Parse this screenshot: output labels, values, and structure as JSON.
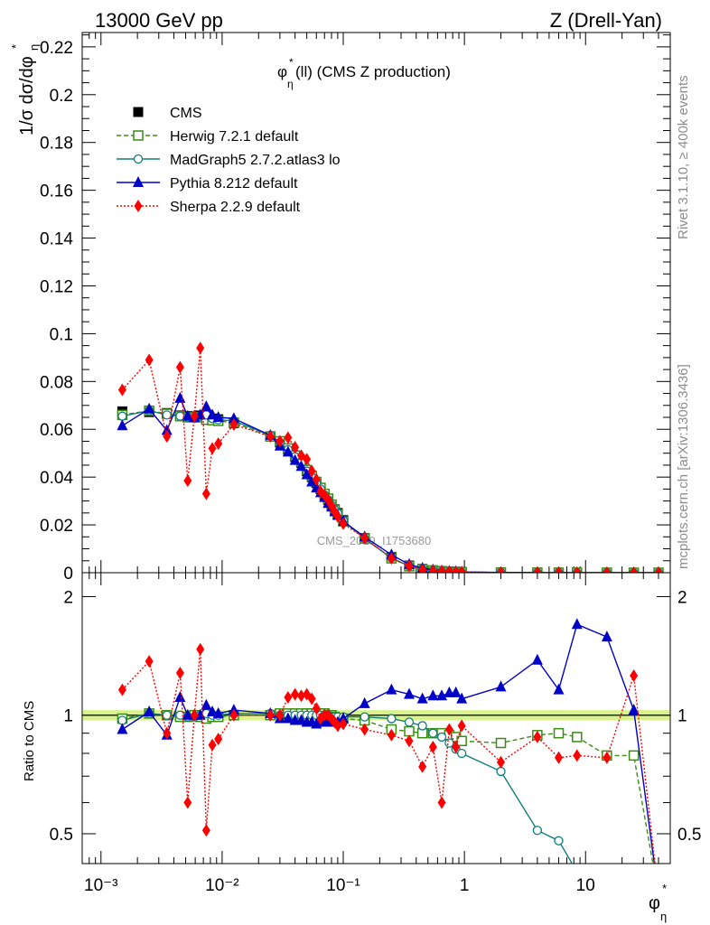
{
  "header": {
    "left": "13000 GeV pp",
    "right": "Z (Drell-Yan)"
  },
  "plot_title": "(ll) (CMS Z production)",
  "watermark": "CMS_2019_I1753680",
  "side_top": "Rivet 3.1.10, ≥ 400k events",
  "side_bottom": "mcplots.cern.ch [arXiv:1306.3436]",
  "labels": {
    "ylabel_main": "1/σ dσ/dφ",
    "ylabel_ratio": "Ratio to CMS",
    "xlabel": "φ",
    "eta": "η",
    "star": "*"
  },
  "legend": [
    {
      "key": "cms",
      "label": "CMS"
    },
    {
      "key": "herwig",
      "label": "Herwig 7.2.1 default"
    },
    {
      "key": "madgraph",
      "label": "MadGraph5 2.7.2.atlas3 lo"
    },
    {
      "key": "pythia",
      "label": "Pythia 8.212 default"
    },
    {
      "key": "sherpa",
      "label": "Sherpa 2.2.9 default"
    }
  ],
  "colors": {
    "cms": "#000000",
    "herwig": "#3c8c14",
    "madgraph": "#0f7d7d",
    "pythia": "#0000c8",
    "sherpa": "#ff0000",
    "band": "#d4f07a"
  },
  "chart_data": {
    "type": "line",
    "x_scale": "log",
    "xlim": [
      0.0007,
      50
    ],
    "x_ticks": [
      "10⁻³",
      "10⁻²",
      "10⁻¹",
      "1",
      "10"
    ],
    "main": {
      "ylim": [
        0,
        0.226
      ],
      "yticks": [
        "0",
        "0.02",
        "0.04",
        "0.06",
        "0.08",
        "0.1",
        "0.12",
        "0.14",
        "0.16",
        "0.18",
        "0.2",
        "0.22"
      ]
    },
    "ratio": {
      "scale": "log",
      "ylim": [
        0.42,
        2.3
      ],
      "yticks": [
        "0.5",
        "1",
        "2"
      ]
    },
    "x": [
      0.0015,
      0.0025,
      0.0035,
      0.0045,
      0.0052,
      0.0059,
      0.0066,
      0.0074,
      0.0083,
      0.0093,
      0.0125,
      0.025,
      0.03,
      0.035,
      0.04,
      0.045,
      0.05,
      0.055,
      0.06,
      0.065,
      0.07,
      0.075,
      0.08,
      0.085,
      0.09,
      0.1,
      0.15,
      0.25,
      0.35,
      0.45,
      0.55,
      0.65,
      0.75,
      0.85,
      0.95,
      2,
      4,
      6,
      8.5,
      15,
      25,
      40
    ],
    "series": [
      {
        "name": "CMS",
        "values": [
          0.0675,
          0.0672,
          0.0668,
          0.0658,
          0.0655,
          0.0652,
          0.0658,
          0.0655,
          0.0645,
          0.0642,
          0.0625,
          0.057,
          0.0545,
          0.0515,
          0.0485,
          0.046,
          0.0425,
          0.04,
          0.0375,
          0.035,
          0.0325,
          0.0305,
          0.0285,
          0.0265,
          0.025,
          0.022,
          0.0145,
          0.0065,
          0.003,
          0.0016,
          0.001,
          0.0007,
          0.0005,
          0.0004,
          0.0003,
          0.0001,
          5e-05,
          3e-05,
          2e-05,
          1e-05,
          5e-06,
          2e-06
        ]
      },
      {
        "name": "Herwig 7.2.1 default",
        "values": [
          0.066,
          0.0678,
          0.0665,
          0.0655,
          0.065,
          0.065,
          0.065,
          0.064,
          0.0638,
          0.0635,
          0.0628,
          0.057,
          0.055,
          0.052,
          0.049,
          0.0465,
          0.043,
          0.0405,
          0.038,
          0.0355,
          0.033,
          0.031,
          0.0285,
          0.0262,
          0.0245,
          0.0215,
          0.0143,
          0.006,
          0.0027,
          0.0014,
          0.0009,
          0.0006,
          0.0004,
          0.0003,
          0.0002,
          0.0001,
          4e-05,
          3e-05,
          2e-05,
          1e-05,
          4e-06,
          1e-06
        ],
        "ratio": [
          0.98,
          1.01,
          1.0,
          0.99,
          0.99,
          1.0,
          0.99,
          0.98,
          0.99,
          0.99,
          1.0,
          1.0,
          1.01,
          1.01,
          1.01,
          1.01,
          1.01,
          1.01,
          1.01,
          1.01,
          1.01,
          1.0,
          1.0,
          0.99,
          0.98,
          0.98,
          0.97,
          0.92,
          0.91,
          0.9,
          0.9,
          0.9,
          0.89,
          0.88,
          0.86,
          0.85,
          0.89,
          0.9,
          0.88,
          0.79,
          0.79,
          0.35
        ]
      },
      {
        "name": "MadGraph5 2.7.2.atlas3 lo",
        "values": [
          0.0655,
          0.0678,
          0.066,
          0.0655,
          0.065,
          0.0645,
          0.0655,
          0.066,
          0.0645,
          0.064,
          0.0635,
          0.0575,
          0.0545,
          0.0515,
          0.0485,
          0.046,
          0.0425,
          0.04,
          0.0375,
          0.035,
          0.0325,
          0.0305,
          0.0283,
          0.0262,
          0.0248,
          0.0218,
          0.0143,
          0.0062,
          0.0028,
          0.0014,
          0.0009,
          0.0006,
          0.0004,
          0.0003,
          0.0002,
          7e-05,
          3e-05,
          2e-05,
          1e-05,
          4e-06,
          1e-06,
          5e-07
        ],
        "ratio": [
          0.97,
          1.01,
          1.0,
          1.0,
          0.99,
          0.99,
          1.0,
          1.01,
          1.0,
          1.0,
          1.01,
          1.01,
          1.0,
          1.0,
          1.0,
          1.0,
          1.0,
          1.0,
          1.0,
          1.0,
          1.0,
          1.0,
          0.99,
          0.99,
          0.99,
          0.99,
          0.99,
          0.98,
          0.96,
          0.94,
          0.9,
          0.88,
          0.85,
          0.82,
          0.8,
          0.72,
          0.51,
          0.48,
          0.4,
          0.4,
          0.35,
          0.3
        ]
      },
      {
        "name": "Pythia 8.212 default",
        "values": [
          0.0615,
          0.0685,
          0.0595,
          0.073,
          0.0655,
          0.065,
          0.066,
          0.0695,
          0.066,
          0.065,
          0.0645,
          0.0575,
          0.053,
          0.0505,
          0.047,
          0.0445,
          0.041,
          0.038,
          0.0355,
          0.0335,
          0.0315,
          0.029,
          0.0275,
          0.0255,
          0.024,
          0.0215,
          0.015,
          0.0075,
          0.0035,
          0.0019,
          0.0012,
          0.0008,
          0.0006,
          0.0005,
          0.0003,
          0.0001,
          7e-05,
          4e-05,
          3e-05,
          2e-05,
          1e-05,
          2e-06
        ],
        "ratio": [
          0.92,
          1.02,
          0.89,
          1.11,
          1.0,
          1.0,
          1.0,
          1.06,
          1.02,
          1.01,
          1.03,
          1.01,
          0.98,
          0.98,
          0.97,
          0.97,
          0.96,
          0.96,
          0.95,
          0.96,
          0.97,
          0.96,
          0.97,
          0.96,
          0.96,
          0.98,
          1.07,
          1.16,
          1.13,
          1.1,
          1.12,
          1.12,
          1.14,
          1.14,
          1.1,
          1.18,
          1.38,
          1.16,
          1.7,
          1.58,
          1.03,
          0.35
        ]
      },
      {
        "name": "Sherpa 2.2.9 default",
        "values": [
          0.0765,
          0.089,
          0.057,
          0.086,
          0.0385,
          0.0655,
          0.094,
          0.033,
          0.052,
          0.054,
          0.062,
          0.057,
          0.055,
          0.0565,
          0.0525,
          0.049,
          0.0475,
          0.0425,
          0.039,
          0.034,
          0.0325,
          0.0305,
          0.028,
          0.0255,
          0.0235,
          0.0205,
          0.0145,
          0.006,
          0.0028,
          0.0012,
          0.0008,
          0.0006,
          0.0005,
          0.0003,
          0.0003,
          7e-05,
          5e-05,
          3e-05,
          2e-05,
          1e-05,
          6e-06,
          1e-06
        ],
        "ratio": [
          1.16,
          1.37,
          0.9,
          1.28,
          0.6,
          1.0,
          1.47,
          0.51,
          0.84,
          0.87,
          1.0,
          1.0,
          1.0,
          1.11,
          1.13,
          1.12,
          1.13,
          1.1,
          1.04,
          0.98,
          1.0,
          1.0,
          0.98,
          0.96,
          0.94,
          0.95,
          0.92,
          0.89,
          0.86,
          0.74,
          0.83,
          0.6,
          0.92,
          0.83,
          0.94,
          0.76,
          0.88,
          0.78,
          0.79,
          0.78,
          1.26,
          0.35
        ]
      }
    ]
  }
}
